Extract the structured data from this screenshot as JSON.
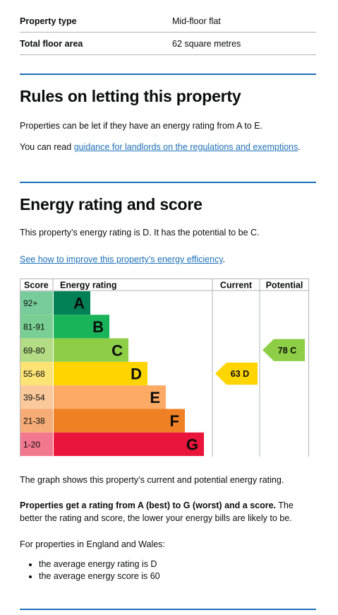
{
  "summary": [
    {
      "label": "Property type",
      "value": "Mid-floor flat"
    },
    {
      "label": "Total floor area",
      "value": "62 square metres"
    }
  ],
  "letting": {
    "heading": "Rules on letting this property",
    "para1": "Properties can be let if they have an energy rating from A to E.",
    "para2_prefix": "You can read ",
    "para2_link": "guidance for landlords on the regulations and exemptions",
    "para2_suffix": "."
  },
  "energy": {
    "heading": "Energy rating and score",
    "para1": "This property’s energy rating is D. It has the potential to be C.",
    "improve_link": "See how to improve this property’s energy efficiency",
    "improve_suffix": ".",
    "graph_note": "The graph shows this property’s current and potential energy rating.",
    "bold_text": "Properties get a rating from A (best) to G (worst) and a score.",
    "rest_text": " The better the rating and score, the lower your energy bills are likely to be.",
    "england_wales": "For properties in England and Wales:",
    "bullets": [
      "the average energy rating is D",
      "the average energy score is 60"
    ]
  },
  "chart_data": {
    "type": "bar",
    "headers": {
      "score": "Score",
      "rating": "Energy rating",
      "current": "Current",
      "potential": "Potential"
    },
    "bands": [
      {
        "score": "92+",
        "letter": "A",
        "color": "#008054",
        "score_bg": "#78cc9c"
      },
      {
        "score": "81-91",
        "letter": "B",
        "color": "#19b459",
        "score_bg": "#79cf93"
      },
      {
        "score": "69-80",
        "letter": "C",
        "color": "#8dce46",
        "score_bg": "#b4dc85"
      },
      {
        "score": "55-68",
        "letter": "D",
        "color": "#ffd500",
        "score_bg": "#fbe376"
      },
      {
        "score": "39-54",
        "letter": "E",
        "color": "#fcaa65",
        "score_bg": "#f9c89b"
      },
      {
        "score": "21-38",
        "letter": "F",
        "color": "#ef8023",
        "score_bg": "#f5ac76"
      },
      {
        "score": "1-20",
        "letter": "G",
        "color": "#e9153b",
        "score_bg": "#f2788f"
      }
    ],
    "current": {
      "score": 63,
      "letter": "D",
      "label": "63 D",
      "color": "#ffd500"
    },
    "potential": {
      "score": 78,
      "letter": "C",
      "label": "78 C",
      "color": "#8dce46"
    }
  }
}
